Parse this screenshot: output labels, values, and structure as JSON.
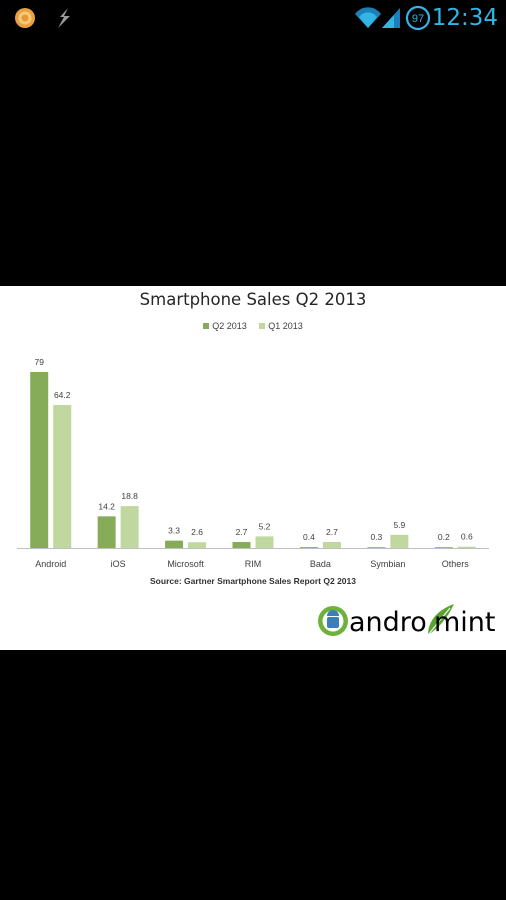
{
  "status_bar": {
    "time": "12:34",
    "battery_level": "97",
    "icons": [
      "notification-coin-icon",
      "usb-debug-icon",
      "wifi-icon",
      "cell-signal-icon",
      "battery-icon"
    ],
    "clock_color": "#33b5e5"
  },
  "chart_data": {
    "type": "bar",
    "title": "Smartphone Sales Q2 2013",
    "categories": [
      "Android",
      "iOS",
      "Microsoft",
      "RIM",
      "Bada",
      "Symbian",
      "Others"
    ],
    "series": [
      {
        "name": "Q2 2013",
        "color": "#86ac59",
        "values": [
          79,
          14.2,
          3.3,
          2.7,
          0.4,
          0.3,
          0.2
        ],
        "labels": [
          "79",
          "14.2",
          "3.3",
          "2.7",
          "0.4",
          "0.3",
          "0.2"
        ]
      },
      {
        "name": "Q1 2013",
        "color": "#c0d7a0",
        "values": [
          64.2,
          18.8,
          2.6,
          5.2,
          2.7,
          5.9,
          0.6
        ],
        "labels": [
          "64.2",
          "18.8",
          "2.6",
          "5.2",
          "2.7",
          "5.9",
          "0.6"
        ]
      }
    ],
    "ylim": [
      0,
      79
    ],
    "grid": false,
    "legend_position": "top-center",
    "source": "Source: Gartner Smartphone Sales Report Q2 2013"
  },
  "logo": {
    "text_before": "andro",
    "text_after": "mint"
  }
}
